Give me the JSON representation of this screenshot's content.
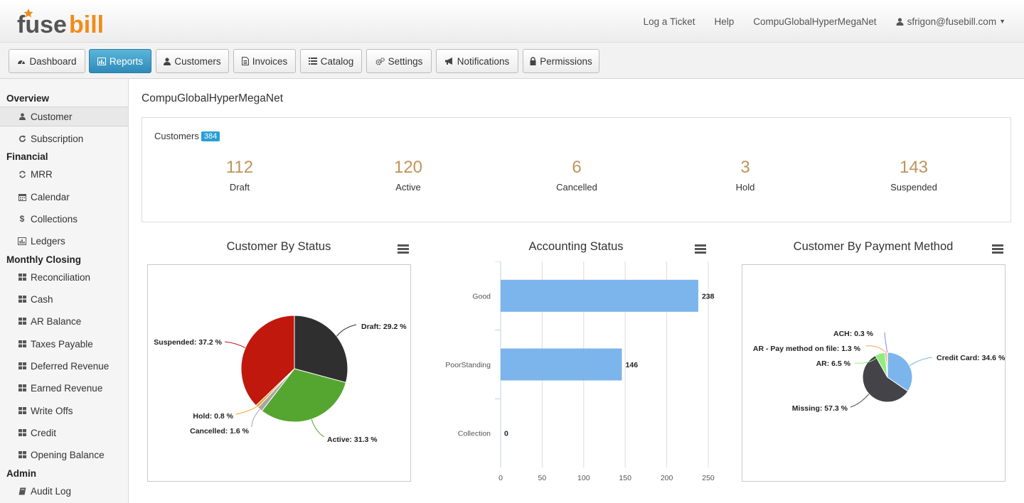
{
  "header": {
    "logo_text": "fusebill",
    "links": [
      "Log a Ticket",
      "Help",
      "CompuGlobalHyperMegaNet"
    ],
    "user": "sfrigon@fusebill.com"
  },
  "nav": [
    "Dashboard",
    "Reports",
    "Customers",
    "Invoices",
    "Catalog",
    "Settings",
    "Notifications",
    "Permissions"
  ],
  "sidebar": {
    "overview": "Overview",
    "customer": "Customer",
    "subscription": "Subscription",
    "financial": "Financial",
    "mrr": "MRR",
    "calendar": "Calendar",
    "collections": "Collections",
    "ledgers": "Ledgers",
    "monthly_closing": "Monthly Closing",
    "reconciliation": "Reconciliation",
    "cash": "Cash",
    "ar_balance": "AR Balance",
    "taxes_payable": "Taxes Payable",
    "deferred_revenue": "Deferred Revenue",
    "earned_revenue": "Earned Revenue",
    "write_offs": "Write Offs",
    "credit": "Credit",
    "opening_balance": "Opening Balance",
    "admin": "Admin",
    "audit_log": "Audit Log"
  },
  "main": {
    "company": "CompuGlobalHyperMegaNet",
    "customers_label": "Customers",
    "customers_count": "384",
    "stats": [
      {
        "value": "112",
        "label": "Draft"
      },
      {
        "value": "120",
        "label": "Active"
      },
      {
        "value": "6",
        "label": "Cancelled"
      },
      {
        "value": "3",
        "label": "Hold"
      },
      {
        "value": "143",
        "label": "Suspended"
      }
    ]
  },
  "colors": {
    "accent": "#2a9fd6",
    "stat_number": "#c0935b",
    "bar": "#7cb5ec",
    "draft": "#2f2f2f",
    "active": "#55a630",
    "cancelled": "#a5a5a5",
    "hold": "#f39c12",
    "suspended": "#c0180c"
  },
  "chart_data": [
    {
      "type": "pie",
      "title": "Customer By Status",
      "slices": [
        {
          "label": "Draft: 29.2 %",
          "value": 29.2,
          "color": "#2f2f2f"
        },
        {
          "label": "Active: 31.3 %",
          "value": 31.3,
          "color": "#55a630"
        },
        {
          "label": "Cancelled: 1.6 %",
          "value": 1.6,
          "color": "#a5a5a5"
        },
        {
          "label": "Hold: 0.8 %",
          "value": 0.8,
          "color": "#f39c12"
        },
        {
          "label": "Suspended: 37.2 %",
          "value": 37.2,
          "color": "#c0180c"
        }
      ]
    },
    {
      "type": "bar",
      "title": "Accounting Status",
      "orientation": "horizontal",
      "categories": [
        "Good",
        "PoorStanding",
        "Collection"
      ],
      "values": [
        238,
        146,
        0
      ],
      "xlim": [
        0,
        250
      ],
      "ticks": [
        "0",
        "50",
        "100",
        "150",
        "200",
        "250"
      ],
      "grid": true
    },
    {
      "type": "pie",
      "title": "Customer By Payment Method",
      "slices": [
        {
          "label": "Credit Card: 34.6 %",
          "value": 34.6,
          "color": "#7cb5ec"
        },
        {
          "label": "Missing: 57.3 %",
          "value": 57.3,
          "color": "#434348"
        },
        {
          "label": "AR: 6.5 %",
          "value": 6.5,
          "color": "#90ed7d"
        },
        {
          "label": "AR - Pay method on file: 1.3 %",
          "value": 1.3,
          "color": "#f7a35c"
        },
        {
          "label": "ACH: 0.3 %",
          "value": 0.3,
          "color": "#8085e9"
        }
      ]
    }
  ]
}
